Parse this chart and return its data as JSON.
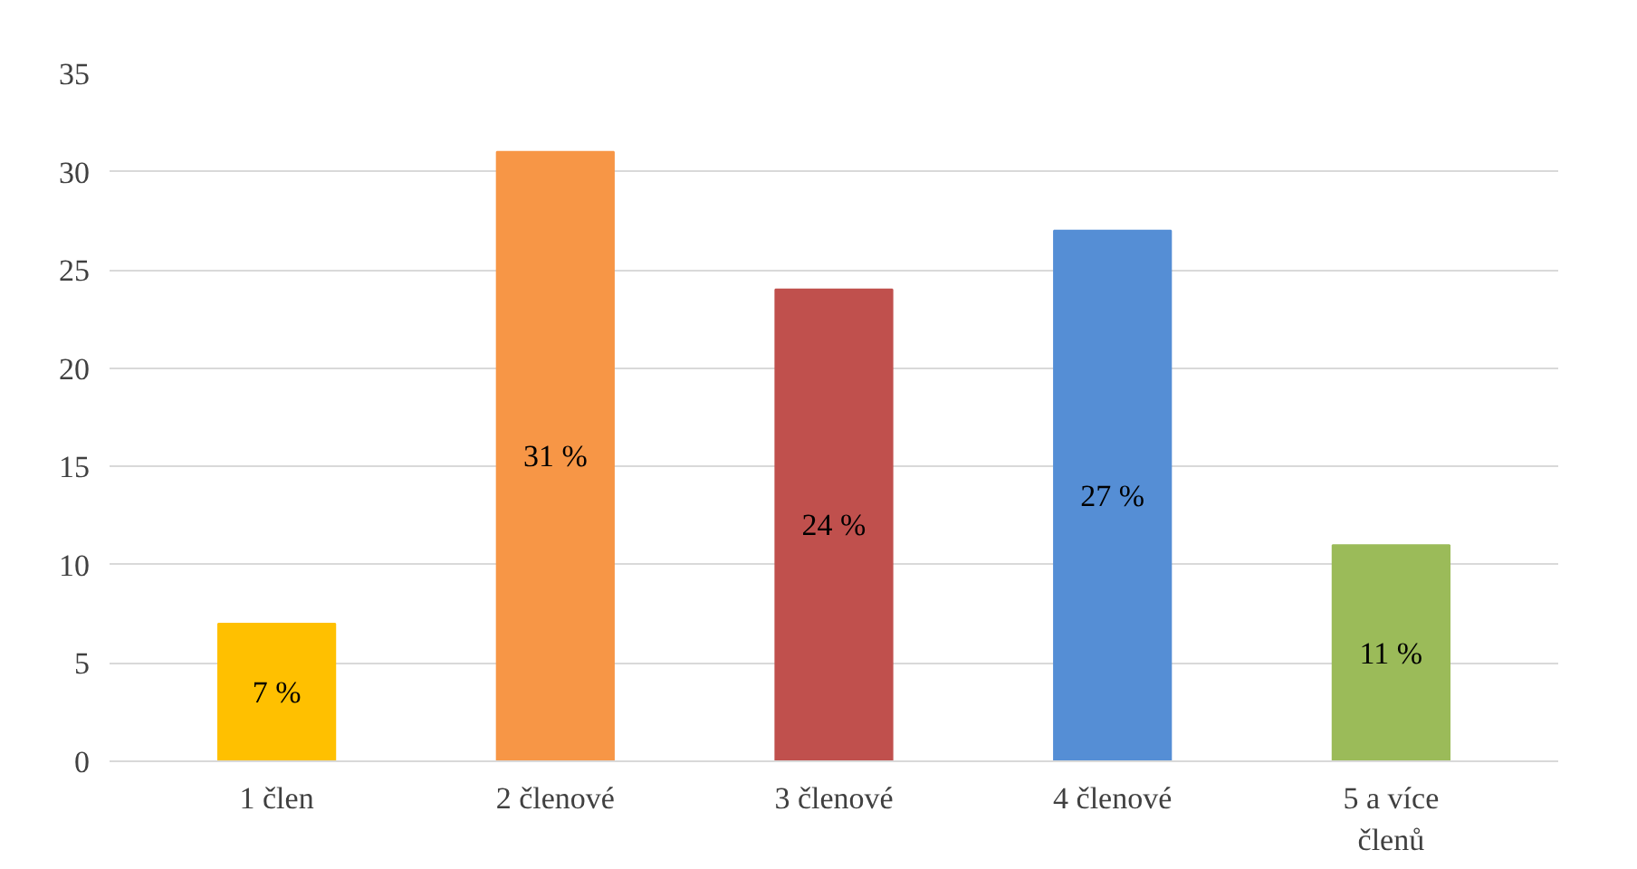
{
  "chart_data": {
    "type": "bar",
    "categories": [
      "1 člen",
      "2 členové",
      "3 členové",
      "4 členové",
      "5 a více členů"
    ],
    "values": [
      7,
      31,
      24,
      27,
      11
    ],
    "colors": [
      "#ffc000",
      "#f79646",
      "#c0504d",
      "#558ed5",
      "#9bbb59"
    ],
    "value_labels": [
      "7 %",
      "31 %",
      "24 %",
      "27 %",
      "11 %"
    ],
    "ylim": [
      0,
      35
    ],
    "yticks": [
      0,
      5,
      10,
      15,
      20,
      25,
      30,
      35
    ],
    "grid": "y"
  }
}
